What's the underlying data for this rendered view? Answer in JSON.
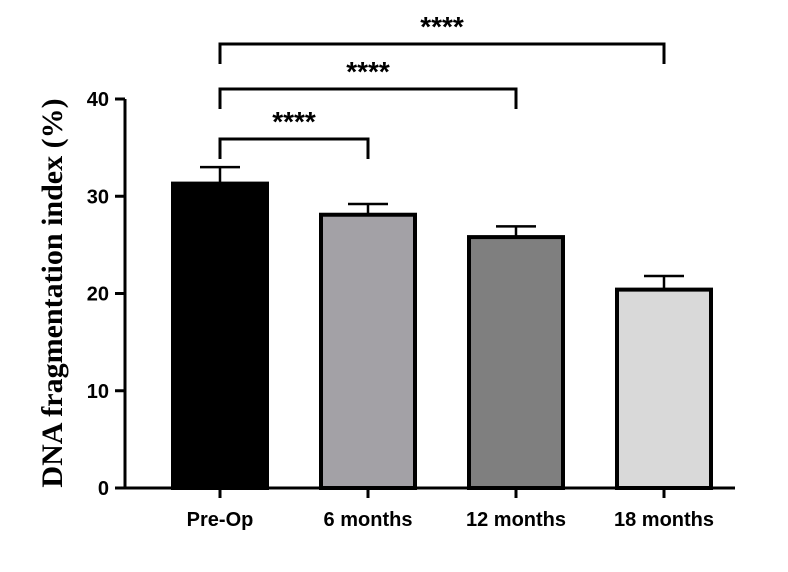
{
  "chart_data": {
    "type": "bar",
    "categories": [
      "Pre-Op",
      "6 months",
      "12 months",
      "18 months"
    ],
    "values": [
      31.3,
      28.1,
      25.8,
      20.4
    ],
    "errors": [
      1.7,
      1.1,
      1.1,
      1.4
    ],
    "bar_colors": [
      "#000000",
      "#a3a1a6",
      "#7f7f7f",
      "#d9d9d9"
    ],
    "title": "",
    "xlabel": "",
    "ylabel": "DNA fragmentation index (%)",
    "ylim": [
      0,
      40
    ],
    "yticks": [
      "0",
      "10",
      "20",
      "30",
      "40"
    ],
    "grid": false,
    "significance": [
      {
        "from": "Pre-Op",
        "to": "6 months",
        "label": "****"
      },
      {
        "from": "Pre-Op",
        "to": "12 months",
        "label": "****"
      },
      {
        "from": "Pre-Op",
        "to": "18 months",
        "label": "****"
      }
    ]
  }
}
